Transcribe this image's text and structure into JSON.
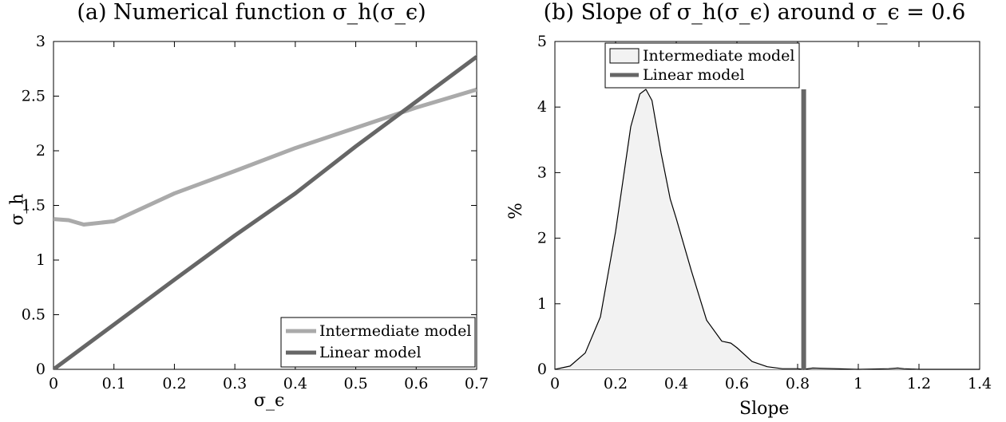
{
  "chart_data": [
    {
      "type": "line",
      "title": "(a) Numerical function σ_h(σ_ϵ)",
      "xlabel": "σ_ϵ",
      "ylabel": "σ_h",
      "xlim": [
        0,
        0.7
      ],
      "ylim": [
        0,
        3
      ],
      "xticks": [
        0,
        0.1,
        0.2,
        0.3,
        0.4,
        0.5,
        0.6,
        0.7
      ],
      "yticks": [
        0,
        0.5,
        1,
        1.5,
        2,
        2.5,
        3
      ],
      "xtick_labels": [
        "0",
        "0.1",
        "0.2",
        "0.3",
        "0.4",
        "0.5",
        "0.6",
        "0.7"
      ],
      "ytick_labels": [
        "0",
        "0.5",
        "1",
        "1.5",
        "2",
        "2.5",
        "3"
      ],
      "grid": false,
      "legend_position": "bottom-right",
      "series": [
        {
          "name": "Intermediate model",
          "color": "#aaaaaa",
          "x": [
            0,
            0.025,
            0.05,
            0.1,
            0.2,
            0.3,
            0.4,
            0.5,
            0.6,
            0.7
          ],
          "y": [
            1.375,
            1.365,
            1.325,
            1.355,
            1.61,
            1.815,
            2.025,
            2.21,
            2.395,
            2.56
          ]
        },
        {
          "name": "Linear model",
          "color": "#666666",
          "x": [
            0,
            0.1,
            0.2,
            0.3,
            0.4,
            0.5,
            0.6,
            0.7
          ],
          "y": [
            0,
            0.41,
            0.82,
            1.225,
            1.61,
            2.04,
            2.45,
            2.86
          ]
        }
      ]
    },
    {
      "type": "area",
      "title": "(b) Slope of σ_h(σ_ϵ) around σ_ϵ = 0.6",
      "xlabel": "Slope",
      "ylabel": "%",
      "xlim": [
        0,
        1.4
      ],
      "ylim": [
        0,
        5
      ],
      "xticks": [
        0,
        0.2,
        0.4,
        0.6,
        0.8,
        1,
        1.2,
        1.4
      ],
      "yticks": [
        0,
        1,
        2,
        3,
        4,
        5
      ],
      "xtick_labels": [
        "0",
        "0.2",
        "0.4",
        "0.6",
        "0.8",
        "1",
        "1.2",
        "1.4"
      ],
      "ytick_labels": [
        "0",
        "1",
        "2",
        "3",
        "4",
        "5"
      ],
      "grid": false,
      "legend_position": "top-left",
      "series": [
        {
          "name": "Intermediate model",
          "style": "filled-density",
          "fill": "#f2f2f2",
          "stroke": "#000000",
          "x": [
            0,
            0.05,
            0.1,
            0.15,
            0.2,
            0.25,
            0.28,
            0.3,
            0.32,
            0.35,
            0.38,
            0.4,
            0.45,
            0.5,
            0.55,
            0.58,
            0.6,
            0.65,
            0.7,
            0.75,
            0.8,
            0.82,
            0.85,
            1.0,
            1.1,
            1.13,
            1.15,
            1.2,
            1.4
          ],
          "y": [
            0,
            0.05,
            0.25,
            0.8,
            2.1,
            3.7,
            4.2,
            4.27,
            4.1,
            3.3,
            2.6,
            2.3,
            1.5,
            0.75,
            0.43,
            0.4,
            0.33,
            0.12,
            0.04,
            0.01,
            0.01,
            0.0,
            0.02,
            0.0,
            0.01,
            0.02,
            0.01,
            0.0,
            0.0
          ]
        },
        {
          "name": "Linear model",
          "style": "vertical-bar",
          "color": "#666666",
          "x": 0.82,
          "y": 4.27
        }
      ]
    }
  ]
}
